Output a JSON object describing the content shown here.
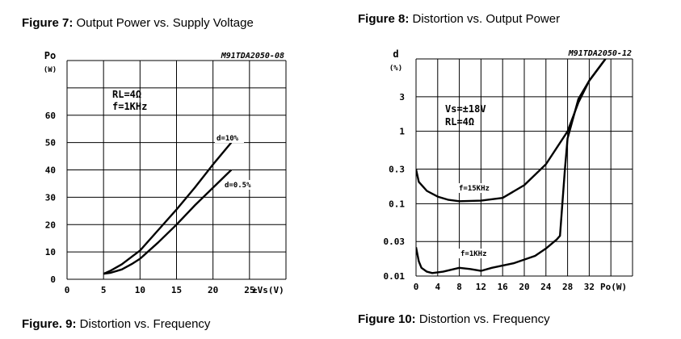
{
  "captions": {
    "fig7": {
      "label": "Figure 7:",
      "text": " Output Power vs. Supply Voltage"
    },
    "fig8": {
      "label": "Figure 8:",
      "text": " Distortion vs. Output Power"
    },
    "fig9": {
      "label": "Figure. 9:",
      "text": " Distortion vs. Frequency"
    },
    "fig10": {
      "label": "Figure 10:",
      "text": " Distortion vs. Frequency"
    }
  },
  "chart_data": [
    {
      "type": "line",
      "title": "Output Power vs. Supply Voltage",
      "code": "M91TDA2050-08",
      "ylabel": "Po",
      "yunit": "(W)",
      "xlabel": "±Vs(V)",
      "xlim": [
        0,
        30
      ],
      "ylim": [
        0,
        80
      ],
      "xticks": [
        "0",
        "5",
        "10",
        "15",
        "20",
        "25"
      ],
      "xtick_values": [
        0,
        5,
        10,
        15,
        20,
        25
      ],
      "yticks": [
        "0",
        "10",
        "20",
        "30",
        "40",
        "50",
        "60"
      ],
      "ytick_values": [
        0,
        10,
        20,
        30,
        40,
        50,
        60
      ],
      "grid": true,
      "annotations": [
        "RL=4Ω",
        "f=1KHz"
      ],
      "series": [
        {
          "name": "d=10%",
          "x": [
            5,
            6,
            7.5,
            9,
            10,
            12.5,
            15,
            17.5,
            20,
            22.5
          ],
          "y": [
            2,
            3.2,
            5.5,
            8.5,
            10.5,
            18,
            25.5,
            33.5,
            42,
            50
          ]
        },
        {
          "name": "d=0.5%",
          "x": [
            5,
            6,
            7.5,
            9,
            10,
            12.5,
            15,
            17.5,
            20,
            22.5
          ],
          "y": [
            2,
            2.4,
            3.6,
            5.8,
            7.5,
            13.5,
            20,
            27,
            33.5,
            40
          ]
        }
      ]
    },
    {
      "type": "line",
      "title": "Distortion vs. Output Power",
      "code": "M91TDA2050-12",
      "ylabel": "d",
      "yunit": "(%)",
      "xlabel": "Po(W)",
      "yscale": "log",
      "xlim": [
        0,
        40
      ],
      "ylim": [
        0.01,
        10
      ],
      "xticks": [
        "0",
        "4",
        "8",
        "12",
        "16",
        "20",
        "24",
        "28",
        "32"
      ],
      "xtick_values": [
        0,
        4,
        8,
        12,
        16,
        20,
        24,
        28,
        32
      ],
      "yticks": [
        "0.01",
        "0.03",
        "0.1",
        "0.3",
        "1",
        "3"
      ],
      "ytick_values": [
        0.01,
        0.03,
        0.1,
        0.3,
        1,
        3
      ],
      "grid": true,
      "annotations": [
        "Vs=±18V",
        "RL=4Ω"
      ],
      "series": [
        {
          "name": "f=15KHz",
          "x": [
            0,
            0.5,
            2,
            4,
            6,
            8,
            12,
            16,
            20,
            24,
            28,
            30,
            32,
            35
          ],
          "y": [
            0.3,
            0.2,
            0.15,
            0.125,
            0.113,
            0.108,
            0.11,
            0.12,
            0.18,
            0.35,
            1,
            2.5,
            5,
            10
          ]
        },
        {
          "name": "f=1KHz",
          "x": [
            0,
            0.5,
            1,
            2,
            3,
            5,
            8,
            10,
            12,
            14,
            18,
            22,
            24,
            26,
            26.6,
            27.5,
            28,
            30,
            32,
            35
          ],
          "y": [
            0.025,
            0.016,
            0.013,
            0.0115,
            0.011,
            0.0115,
            0.013,
            0.0125,
            0.0118,
            0.013,
            0.015,
            0.019,
            0.024,
            0.032,
            0.036,
            0.3,
            0.8,
            2.8,
            5,
            10
          ]
        }
      ]
    }
  ]
}
